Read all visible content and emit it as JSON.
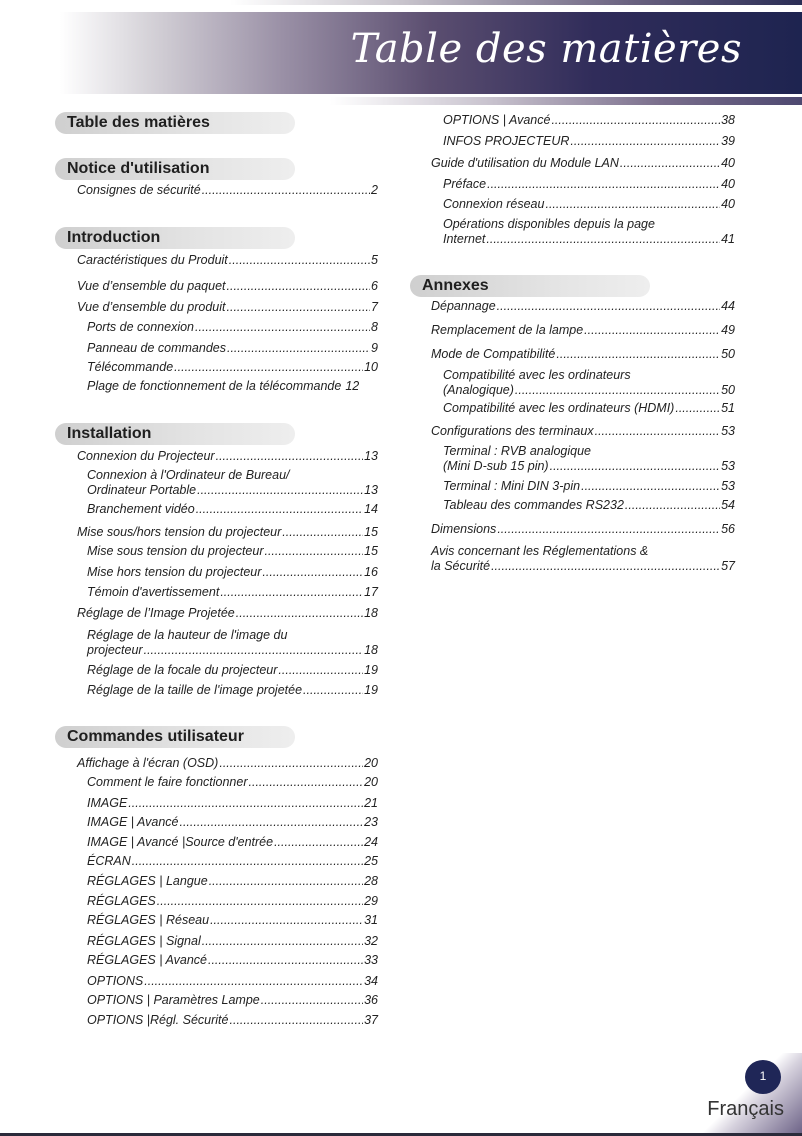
{
  "header": {
    "title": "Table des matières"
  },
  "left": [
    {
      "section": "Table des matières"
    },
    {
      "section": "Notice d'utilisation"
    },
    {
      "t": "Consignes de sécurité",
      "p": "2",
      "l": 1
    },
    {
      "section": "Introduction"
    },
    {
      "t": "Caractéristiques du Produit",
      "p": "5",
      "l": 1
    },
    {
      "t": "Vue d’ensemble du paquet",
      "p": "6",
      "l": 1
    },
    {
      "t": "Vue d’ensemble du produit",
      "p": "7",
      "l": 1
    },
    {
      "t": "Ports de connexion",
      "p": "8",
      "l": 2
    },
    {
      "t": "Panneau de commandes",
      "p": "9",
      "l": 2
    },
    {
      "t": "Télécommande",
      "p": "10",
      "l": 2
    },
    {
      "t": "Plage de fonctionnement de la télécommande",
      "p": "12",
      "l": 2,
      "nodots": true
    },
    {
      "section": "Installation"
    },
    {
      "t": "Connexion du Projecteur",
      "p": "13",
      "l": 1
    },
    {
      "t": "Connexion à l'Ordinateur de Bureau/",
      "t2": "Ordinateur Portable",
      "p": "13",
      "l": 2
    },
    {
      "t": "Branchement vidéo",
      "p": "14",
      "l": 2
    },
    {
      "t": "Mise sous/hors tension du projecteur",
      "p": "15",
      "l": 1
    },
    {
      "t": "Mise sous tension du projecteur",
      "p": "15",
      "l": 2
    },
    {
      "t": "Mise hors tension du projecteur",
      "p": "16",
      "l": 2
    },
    {
      "t": "Témoin d'avertissement",
      "p": "17",
      "l": 2
    },
    {
      "t": "Réglage de l’Image Projetée",
      "p": "18",
      "l": 1
    },
    {
      "t": "Réglage de la hauteur de l'image du",
      "t2": "projecteur",
      "p": "18",
      "l": 2
    },
    {
      "t": "Réglage de la focale du projecteur",
      "p": "19",
      "l": 2
    },
    {
      "t": "Réglage de la taille de l'image projetée",
      "p": "19",
      "l": 2
    },
    {
      "section": "Commandes utilisateur"
    },
    {
      "t": "Affichage à l'écran (OSD)",
      "p": "20",
      "l": 1
    },
    {
      "t": "Comment le faire fonctionner",
      "p": "20",
      "l": 2
    },
    {
      "t": "IMAGE",
      "p": "21",
      "l": 2
    },
    {
      "t": "IMAGE | Avancé",
      "p": "23",
      "l": 2
    },
    {
      "t": "IMAGE | Avancé |Source d'entrée",
      "p": "24",
      "l": 2
    },
    {
      "t": "ÉCRAN",
      "p": "25",
      "l": 2
    },
    {
      "t": "RÉGLAGES | Langue",
      "p": "28",
      "l": 2
    },
    {
      "t": "RÉGLAGES",
      "p": "29",
      "l": 2
    },
    {
      "t": "RÉGLAGES | Réseau",
      "p": "31",
      "l": 2
    },
    {
      "t": "RÉGLAGES | Signal",
      "p": "32",
      "l": 2
    },
    {
      "t": "RÉGLAGES | Avancé",
      "p": "33",
      "l": 2
    },
    {
      "t": "OPTIONS",
      "p": "34",
      "l": 2
    },
    {
      "t": "OPTIONS | Paramètres Lampe",
      "p": "36",
      "l": 2
    },
    {
      "t": "OPTIONS |Régl. Sécurité",
      "p": "37",
      "l": 2
    }
  ],
  "right": [
    {
      "t": "OPTIONS | Avancé",
      "p": "38",
      "l": 2
    },
    {
      "t": "INFOS PROJECTEUR",
      "p": "39",
      "l": 2
    },
    {
      "t": "Guide d'utilisation du Module LAN",
      "p": "40",
      "l": 1
    },
    {
      "t": "Préface",
      "p": "40",
      "l": 2
    },
    {
      "t": "Connexion réseau",
      "p": "40",
      "l": 2
    },
    {
      "t": "Opérations disponibles depuis la page",
      "t2": "Internet",
      "p": "41",
      "l": 2
    },
    {
      "section": "Annexes"
    },
    {
      "t": "Dépannage",
      "p": "44",
      "l": 1
    },
    {
      "t": "Remplacement de la lampe",
      "p": "49",
      "l": 1
    },
    {
      "t": "Mode de Compatibilité",
      "p": "50",
      "l": 1
    },
    {
      "t": "Compatibilité avec les ordinateurs",
      "t2": "(Analogique)",
      "p": "50",
      "l": 2
    },
    {
      "t": "Compatibilité avec les ordinateurs (HDMI)",
      "p": "51",
      "l": 2
    },
    {
      "t": "Configurations des terminaux",
      "p": "53",
      "l": 1
    },
    {
      "t": "Terminal : RVB analogique",
      "t2": "(Mini D-sub 15 pin)",
      "p": "53",
      "l": 2
    },
    {
      "t": "Terminal : Mini DIN 3-pin",
      "p": "53",
      "l": 2
    },
    {
      "t": "Tableau des commandes RS232",
      "p": "54",
      "l": 2
    },
    {
      "t": "Dimensions",
      "p": "56",
      "l": 1
    },
    {
      "t": "Avis concernant les Réglementations &",
      "t2": "la Sécurité",
      "p": "57",
      "l": 1
    }
  ],
  "footer": {
    "page": "1",
    "language": "Français"
  },
  "colors": {
    "navy": "#1f2657",
    "pill": "#d8d8d8"
  }
}
